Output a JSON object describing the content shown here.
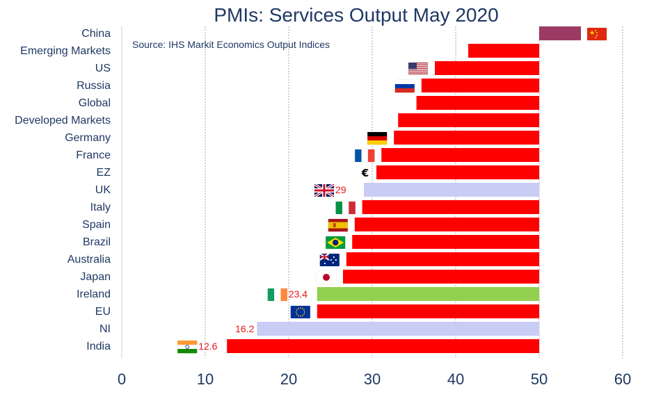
{
  "chart_data": {
    "type": "bar",
    "orientation": "horizontal",
    "title": "PMIs: Services Output May 2020",
    "source_note": "Source: IHS Markit Economics Output Indices",
    "baseline": 50,
    "xlim": [
      0,
      60
    ],
    "xticks": [
      "0",
      "10",
      "20",
      "30",
      "40",
      "50",
      "60"
    ],
    "grid": "vertical dotted",
    "categories": [
      "China",
      "Emerging Markets",
      "US",
      "Russia",
      "Global",
      "Developed Markets",
      "Germany",
      "France",
      "EZ",
      "UK",
      "Italy",
      "Spain",
      "Brazil",
      "Australia",
      "Japan",
      "Ireland",
      "EU",
      "NI",
      "India"
    ],
    "values": [
      55,
      41.5,
      37.5,
      35.9,
      35.3,
      33.1,
      32.6,
      31.1,
      30.5,
      29,
      28.8,
      27.9,
      27.6,
      26.9,
      26.5,
      23.4,
      23.4,
      16.2,
      12.6
    ],
    "bar_colors": [
      "#9b3b63",
      "#ff0000",
      "#ff0000",
      "#ff0000",
      "#ff0000",
      "#ff0000",
      "#ff0000",
      "#ff0000",
      "#ff0000",
      "#c9ccf4",
      "#ff0000",
      "#ff0000",
      "#ff0000",
      "#ff0000",
      "#ff0000",
      "#92d050",
      "#ff0000",
      "#c9ccf4",
      "#ff0000"
    ],
    "data_labels": [
      "",
      "",
      "",
      "",
      "",
      "",
      "",
      "",
      "",
      "29",
      "",
      "",
      "",
      "",
      "",
      "23.4",
      "",
      "16.2",
      "12.6"
    ],
    "markers": [
      "china-flag",
      "",
      "us-flag",
      "russia-flag",
      "",
      "",
      "germany-flag",
      "france-flag",
      "euro-symbol",
      "uk-flag",
      "italy-flag",
      "spain-flag",
      "brazil-flag",
      "australia-flag",
      "japan-flag",
      "ireland-flag",
      "eu-flag",
      "",
      "india-flag"
    ],
    "euro_symbol": "€"
  }
}
